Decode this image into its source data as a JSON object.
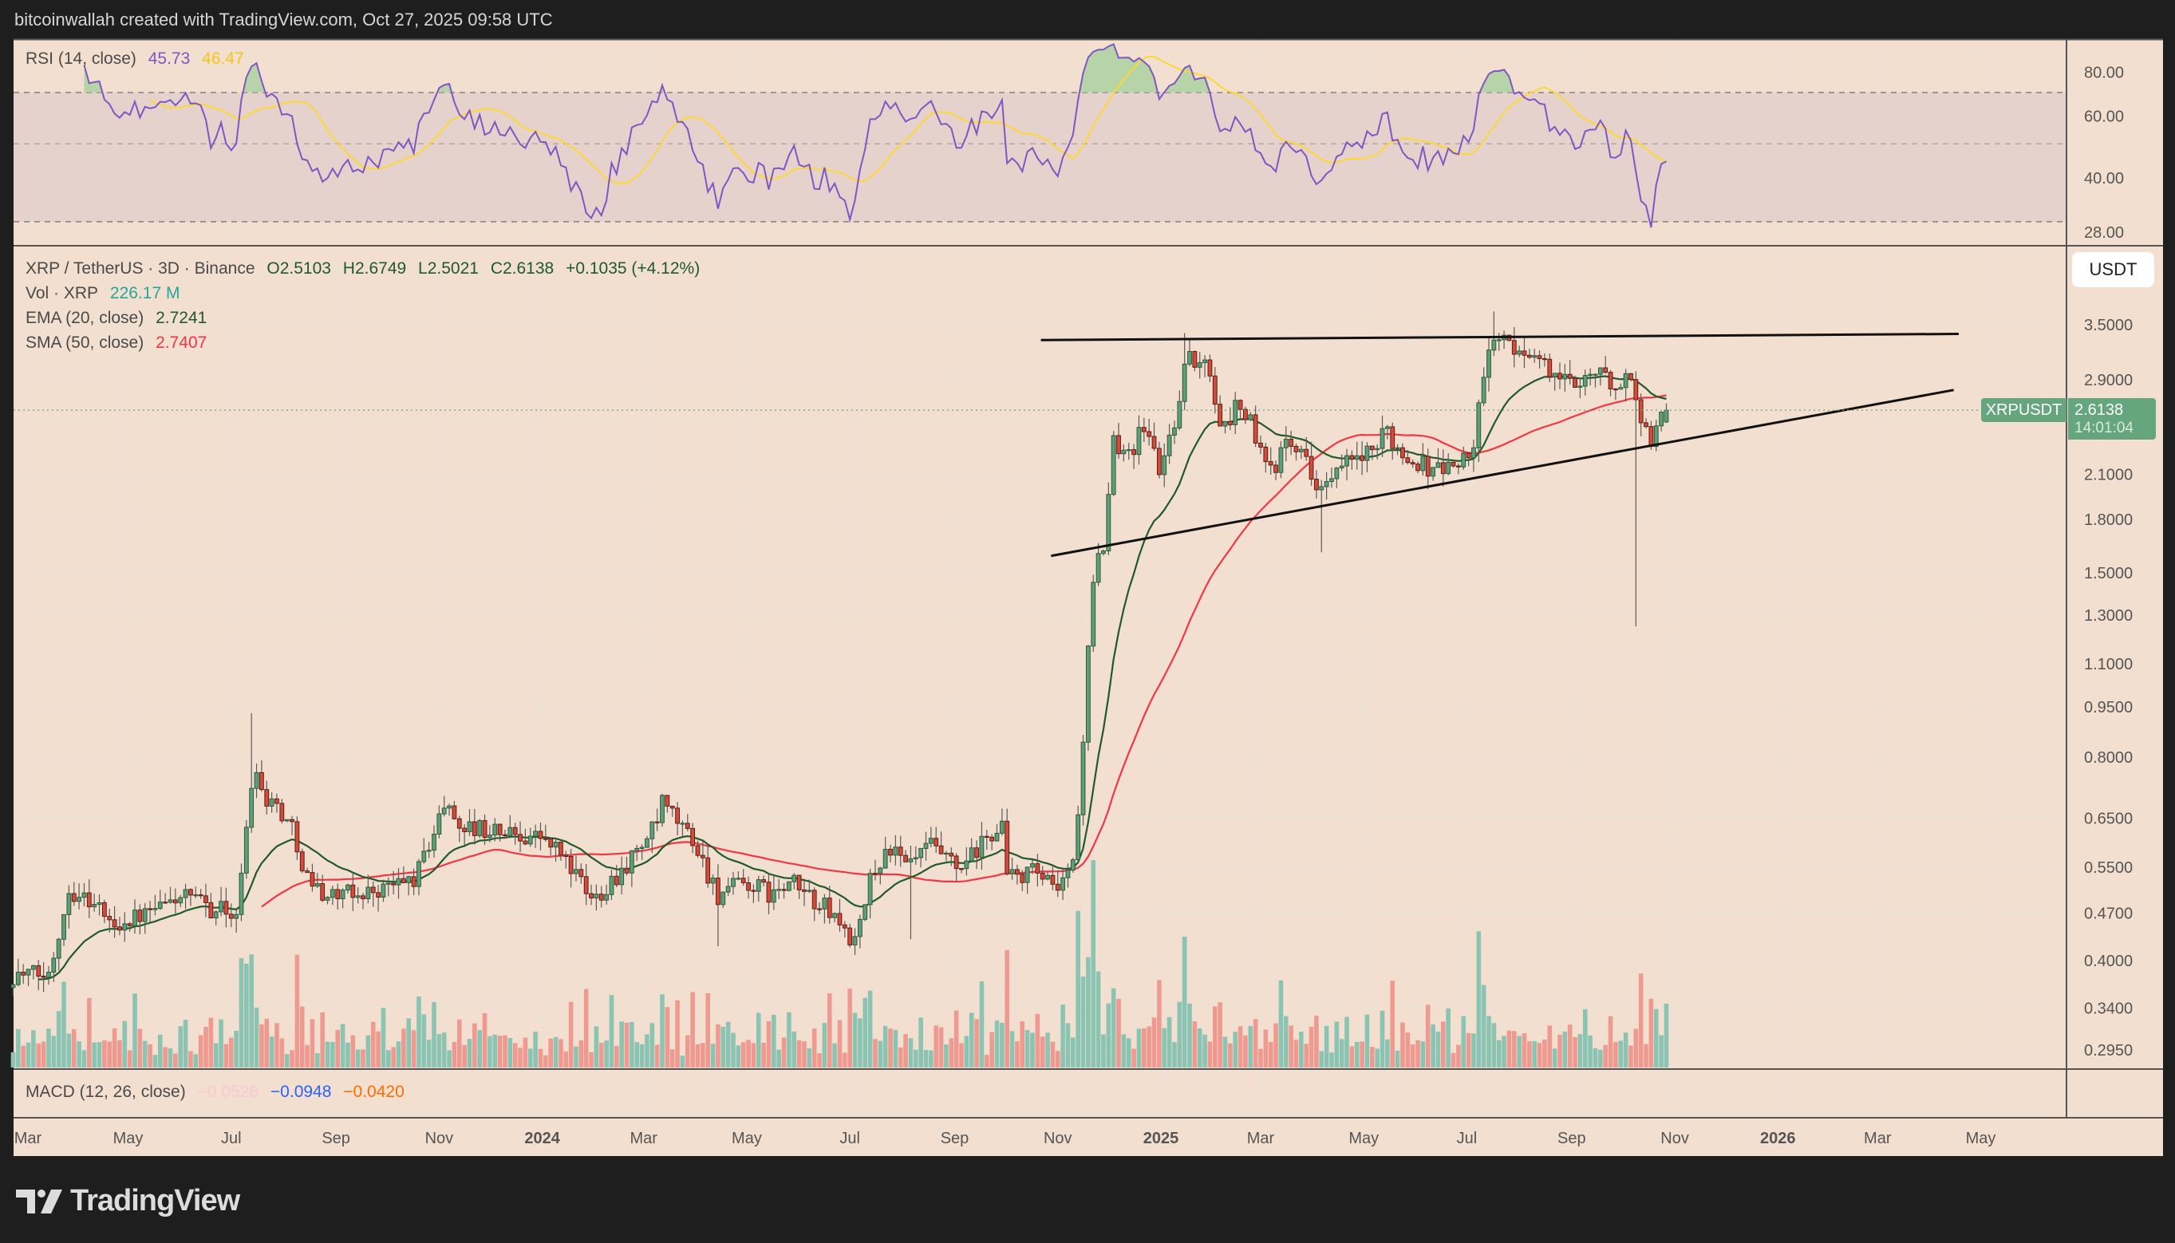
{
  "header": {
    "attribution": "bitcoinwallah created with TradingView.com, Oct 27, 2025 09:58 UTC"
  },
  "rsi_legend": {
    "label": "RSI (14, close)",
    "value": "45.73",
    "signal": "46.47"
  },
  "main_legend": {
    "symbol": "XRP / TetherUS · 3D · Binance",
    "open": "O2.5103",
    "high": "H2.6749",
    "low": "L2.5021",
    "close": "C2.6138",
    "change": "+0.1035 (+4.12%)",
    "vol_label": "Vol · XRP",
    "vol_value": "226.17 M",
    "ema_label": "EMA (20, close)",
    "ema_value": "2.7241",
    "sma_label": "SMA (50, close)",
    "sma_value": "2.7407"
  },
  "macd_legend": {
    "label": "MACD (12, 26, close)",
    "hist": "−0.0528",
    "macd": "−0.0948",
    "signal": "−0.0420"
  },
  "price_axis": {
    "currency_button": "USDT",
    "symbol_tag": "XRPUSDT",
    "last_price": "2.6138",
    "countdown": "14:01:04"
  },
  "footer": {
    "logo": "TradingView"
  },
  "colors": {
    "background": "#f2dfcf",
    "up": "#5e9e7a",
    "down": "#d24c3c",
    "volume_up": "#8cc4b4",
    "volume_down": "#ef9a90",
    "ema": "#1f5a2a",
    "sma": "#f23645",
    "rsi": "#7e57c2",
    "rsi_signal": "#fdd835",
    "macd_hist": "#f8c8d4",
    "macd": "#2962ff",
    "macd_signal": "#ff6d00",
    "last_price": "#66a67f"
  },
  "chart_data": {
    "type": "candlestick",
    "interval": "3D",
    "y_scale": "log",
    "grid": true,
    "y_ticks": [
      "3.5000",
      "2.9000",
      "2.1000",
      "1.8000",
      "1.5000",
      "1.3000",
      "1.1000",
      "0.9500",
      "0.8000",
      "0.6500",
      "0.5500",
      "0.4700",
      "0.4000",
      "0.3400",
      "0.2950"
    ],
    "rsi_ticks": [
      "80.00",
      "60.00",
      "40.00",
      "28.00"
    ],
    "rsi_bands": [
      70,
      50,
      30
    ],
    "x_ticks": [
      {
        "label": "Mar",
        "date": "2023-03-01"
      },
      {
        "label": "May",
        "date": "2023-05-01"
      },
      {
        "label": "Jul",
        "date": "2023-07-01"
      },
      {
        "label": "Sep",
        "date": "2023-09-01"
      },
      {
        "label": "Nov",
        "date": "2023-11-01"
      },
      {
        "label": "2024",
        "date": "2024-01-01",
        "bold": true
      },
      {
        "label": "Mar",
        "date": "2024-03-01"
      },
      {
        "label": "May",
        "date": "2024-05-01"
      },
      {
        "label": "Jul",
        "date": "2024-07-01"
      },
      {
        "label": "Sep",
        "date": "2024-09-01"
      },
      {
        "label": "Nov",
        "date": "2024-11-01"
      },
      {
        "label": "2025",
        "date": "2025-01-01",
        "bold": true
      },
      {
        "label": "Mar",
        "date": "2025-03-01"
      },
      {
        "label": "May",
        "date": "2025-05-01"
      },
      {
        "label": "Jul",
        "date": "2025-07-01"
      },
      {
        "label": "Sep",
        "date": "2025-09-01"
      },
      {
        "label": "Nov",
        "date": "2025-11-01"
      },
      {
        "label": "2026",
        "date": "2026-01-01",
        "bold": true
      },
      {
        "label": "Mar",
        "date": "2026-03-01"
      },
      {
        "label": "May",
        "date": "2026-05-01"
      }
    ],
    "approx_closes": [
      [
        "2023-02-22",
        0.381
      ],
      [
        "2023-03-15",
        0.38
      ],
      [
        "2023-03-20",
        0.43
      ],
      [
        "2023-03-27",
        0.51
      ],
      [
        "2023-04-04",
        0.5
      ],
      [
        "2023-04-14",
        0.48
      ],
      [
        "2023-04-21",
        0.45
      ],
      [
        "2023-05-01",
        0.46
      ],
      [
        "2023-05-15",
        0.47
      ],
      [
        "2023-06-01",
        0.5
      ],
      [
        "2023-06-17",
        0.48
      ],
      [
        "2023-07-05",
        0.47
      ],
      [
        "2023-07-12",
        0.71
      ],
      [
        "2023-07-16",
        0.78
      ],
      [
        "2023-07-20",
        0.7
      ],
      [
        "2023-07-28",
        0.68
      ],
      [
        "2023-08-07",
        0.62
      ],
      [
        "2023-08-15",
        0.53
      ],
      [
        "2023-08-26",
        0.5
      ],
      [
        "2023-09-11",
        0.5
      ],
      [
        "2023-09-28",
        0.51
      ],
      [
        "2023-10-18",
        0.53
      ],
      [
        "2023-11-04",
        0.68
      ],
      [
        "2023-11-16",
        0.63
      ],
      [
        "2023-12-07",
        0.62
      ],
      [
        "2023-12-31",
        0.61
      ],
      [
        "2024-01-14",
        0.57
      ],
      [
        "2024-01-30",
        0.49
      ],
      [
        "2024-02-20",
        0.556
      ],
      [
        "2024-03-08",
        0.63
      ],
      [
        "2024-03-12",
        0.68
      ],
      [
        "2024-03-29",
        0.61
      ],
      [
        "2024-04-14",
        0.5
      ],
      [
        "2024-04-30",
        0.52
      ],
      [
        "2024-05-17",
        0.5
      ],
      [
        "2024-05-28",
        0.52
      ],
      [
        "2024-06-20",
        0.47
      ],
      [
        "2024-07-05",
        0.42
      ],
      [
        "2024-07-13",
        0.53
      ],
      [
        "2024-07-24",
        0.59
      ],
      [
        "2024-08-03",
        0.55
      ],
      [
        "2024-08-18",
        0.59
      ],
      [
        "2024-09-04",
        0.54
      ],
      [
        "2024-09-14",
        0.58
      ],
      [
        "2024-09-29",
        0.64
      ],
      [
        "2024-10-02",
        0.53
      ],
      [
        "2024-10-18",
        0.54
      ],
      [
        "2024-11-02",
        0.5
      ],
      [
        "2024-11-11",
        0.58
      ],
      [
        "2024-11-14",
        0.69
      ],
      [
        "2024-11-20",
        1.32
      ],
      [
        "2024-11-24",
        1.55
      ],
      [
        "2024-11-30",
        1.6
      ],
      [
        "2024-12-02",
        2.33
      ],
      [
        "2024-12-15",
        2.3
      ],
      [
        "2024-12-23",
        2.5
      ],
      [
        "2024-12-31",
        2.12
      ],
      [
        "2025-01-08",
        2.45
      ],
      [
        "2025-01-16",
        3.12
      ],
      [
        "2025-01-24",
        3.05
      ],
      [
        "2025-01-30",
        3.0
      ],
      [
        "2025-02-04",
        2.56
      ],
      [
        "2025-02-10",
        2.45
      ],
      [
        "2025-02-14",
        2.7
      ],
      [
        "2025-02-22",
        2.55
      ],
      [
        "2025-03-02",
        2.2
      ],
      [
        "2025-03-09",
        2.1
      ],
      [
        "2025-03-15",
        2.45
      ],
      [
        "2025-03-23",
        2.33
      ],
      [
        "2025-03-31",
        2.1
      ],
      [
        "2025-04-08",
        2.0
      ],
      [
        "2025-04-16",
        2.12
      ],
      [
        "2025-04-24",
        2.2
      ],
      [
        "2025-05-07",
        2.25
      ],
      [
        "2025-05-15",
        2.45
      ],
      [
        "2025-05-23",
        2.25
      ],
      [
        "2025-06-01",
        2.2
      ],
      [
        "2025-06-09",
        2.15
      ],
      [
        "2025-06-21",
        2.15
      ],
      [
        "2025-07-04",
        2.25
      ],
      [
        "2025-07-10",
        2.8
      ],
      [
        "2025-07-16",
        3.4
      ],
      [
        "2025-07-22",
        3.35
      ],
      [
        "2025-07-28",
        3.15
      ],
      [
        "2025-08-06",
        3.25
      ],
      [
        "2025-08-14",
        3.05
      ],
      [
        "2025-08-22",
        2.95
      ],
      [
        "2025-08-31",
        2.85
      ],
      [
        "2025-09-08",
        2.95
      ],
      [
        "2025-09-16",
        3.0
      ],
      [
        "2025-09-24",
        2.85
      ],
      [
        "2025-10-02",
        2.9
      ],
      [
        "2025-10-09",
        2.8
      ],
      [
        "2025-10-13",
        2.45
      ],
      [
        "2025-10-17",
        2.35
      ],
      [
        "2025-10-21",
        2.45
      ],
      [
        "2025-10-27",
        2.6138
      ]
    ],
    "last_candle": {
      "open": 2.5103,
      "high": 2.6749,
      "low": 2.5021,
      "close": 2.6138
    },
    "wick_extremes": [
      {
        "date": "2023-07-13",
        "high": 0.93
      },
      {
        "date": "2024-04-13",
        "low": 0.42
      },
      {
        "date": "2024-08-05",
        "low": 0.43
      },
      {
        "date": "2024-11-17",
        "high": 0.8
      },
      {
        "date": "2025-01-16",
        "high": 3.4
      },
      {
        "date": "2025-04-07",
        "low": 1.61
      },
      {
        "date": "2025-07-18",
        "high": 3.66
      },
      {
        "date": "2025-10-10",
        "low": 1.25
      }
    ],
    "trendlines": [
      {
        "from": [
          "2024-10-22",
          3.32
        ],
        "to": [
          "2026-04-18",
          3.39
        ]
      },
      {
        "from": [
          "2024-10-28",
          1.59
        ],
        "to": [
          "2026-04-15",
          2.8
        ]
      }
    ]
  }
}
